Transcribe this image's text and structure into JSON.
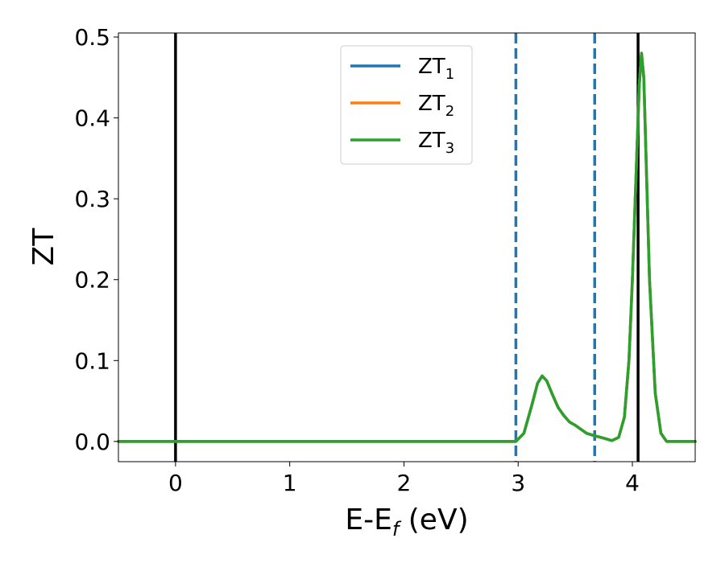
{
  "chart_data": {
    "type": "line",
    "xlabel": {
      "main": "E-E",
      "sub": "f",
      "unit": " (eV)"
    },
    "ylabel": "ZT",
    "xlim": [
      -0.5,
      4.55
    ],
    "ylim": [
      -0.025,
      0.505
    ],
    "xticks": [
      0,
      1,
      2,
      3,
      4
    ],
    "yticks": [
      0.0,
      0.1,
      0.2,
      0.3,
      0.4,
      0.5
    ],
    "xtick_labels": [
      "0",
      "1",
      "2",
      "3",
      "4"
    ],
    "ytick_labels": [
      "0.0",
      "0.1",
      "0.2",
      "0.3",
      "0.4",
      "0.5"
    ],
    "legend_position": "top-center",
    "vlines": [
      {
        "x": 0.0,
        "style": "solid",
        "color": "#000000"
      },
      {
        "x": 4.05,
        "style": "solid",
        "color": "#000000"
      },
      {
        "x": 2.98,
        "style": "dashed",
        "color": "#1f77b4"
      },
      {
        "x": 3.67,
        "style": "dashed",
        "color": "#1f77b4"
      }
    ],
    "series": [
      {
        "name": "ZT",
        "sub": "1",
        "color": "#1f77b4",
        "x": [
          -0.5,
          2.98,
          3.05,
          3.12,
          3.17,
          3.21,
          3.25,
          3.3,
          3.35,
          3.4,
          3.45,
          3.5,
          3.55,
          3.6,
          3.67,
          3.75,
          3.82,
          3.88,
          3.93,
          3.97,
          4.0,
          4.03,
          4.06,
          4.08,
          4.1,
          4.12,
          4.15,
          4.2,
          4.25,
          4.3,
          4.55
        ],
        "y": [
          0.0,
          0.0,
          0.01,
          0.045,
          0.072,
          0.081,
          0.075,
          0.058,
          0.042,
          0.032,
          0.024,
          0.02,
          0.015,
          0.01,
          0.007,
          0.004,
          0.001,
          0.005,
          0.03,
          0.1,
          0.2,
          0.32,
          0.44,
          0.48,
          0.45,
          0.35,
          0.2,
          0.06,
          0.01,
          0.0,
          0.0
        ]
      },
      {
        "name": "ZT",
        "sub": "2",
        "color": "#ff7f0e",
        "x": [
          -0.5,
          2.98,
          3.05,
          3.12,
          3.17,
          3.21,
          3.25,
          3.3,
          3.35,
          3.4,
          3.45,
          3.5,
          3.55,
          3.6,
          3.67,
          3.75,
          3.82,
          3.88,
          3.93,
          3.97,
          4.0,
          4.03,
          4.06,
          4.08,
          4.1,
          4.12,
          4.15,
          4.2,
          4.25,
          4.3,
          4.55
        ],
        "y": [
          0.0,
          0.0,
          0.01,
          0.045,
          0.072,
          0.081,
          0.075,
          0.058,
          0.042,
          0.032,
          0.024,
          0.02,
          0.015,
          0.01,
          0.007,
          0.004,
          0.001,
          0.005,
          0.03,
          0.1,
          0.2,
          0.32,
          0.44,
          0.48,
          0.45,
          0.35,
          0.2,
          0.06,
          0.01,
          0.0,
          0.0
        ]
      },
      {
        "name": "ZT",
        "sub": "3",
        "color": "#2ca02c",
        "x": [
          -0.5,
          2.98,
          3.05,
          3.12,
          3.17,
          3.21,
          3.25,
          3.3,
          3.35,
          3.4,
          3.45,
          3.5,
          3.55,
          3.6,
          3.67,
          3.75,
          3.82,
          3.88,
          3.93,
          3.97,
          4.0,
          4.03,
          4.06,
          4.08,
          4.1,
          4.12,
          4.15,
          4.2,
          4.25,
          4.3,
          4.55
        ],
        "y": [
          0.0,
          0.0,
          0.01,
          0.045,
          0.072,
          0.081,
          0.075,
          0.058,
          0.042,
          0.032,
          0.024,
          0.02,
          0.015,
          0.01,
          0.007,
          0.004,
          0.001,
          0.005,
          0.03,
          0.1,
          0.2,
          0.32,
          0.44,
          0.48,
          0.45,
          0.35,
          0.2,
          0.06,
          0.01,
          0.0,
          0.0
        ]
      }
    ]
  }
}
